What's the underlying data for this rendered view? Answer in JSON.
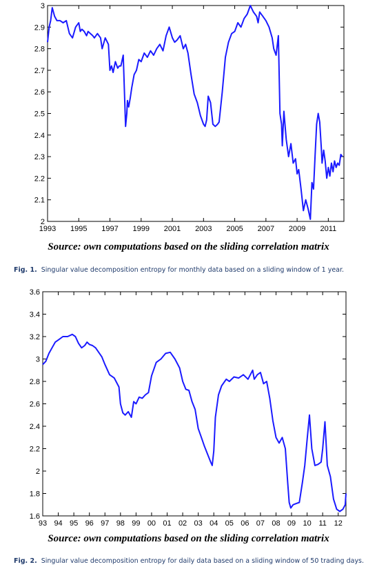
{
  "figures": [
    {
      "label": "Fig. 1.",
      "caption": "Singular value decomposition entropy for monthly data based on a sliding window of 1 year.",
      "source": "Source: own computations based on the sliding correlation matrix"
    },
    {
      "label": "Fig. 2.",
      "caption": "Singular value decomposition entropy for daily data based on a sliding window of 50 trading days.",
      "source": "Source: own computations based on the sliding correlation matrix"
    }
  ],
  "chart_data": [
    {
      "type": "line",
      "color": "#1a1aff",
      "xlim": [
        1993,
        2012
      ],
      "ylim": [
        2,
        3
      ],
      "x_ticks": [
        1993,
        1995,
        1997,
        1999,
        2001,
        2003,
        2005,
        2007,
        2009,
        2011
      ],
      "x_tick_labels": [
        "1993",
        "1995",
        "1997",
        "1999",
        "2001",
        "2003",
        "2005",
        "2007",
        "2009",
        "2011"
      ],
      "y_ticks": [
        2,
        2.1,
        2.2,
        2.3,
        2.4,
        2.5,
        2.6,
        2.7,
        2.8,
        2.9,
        3
      ],
      "y_tick_labels": [
        "2",
        "2.1",
        "2.2",
        "2.3",
        "2.4",
        "2.5",
        "2.6",
        "2.7",
        "2.8",
        "2.9",
        "3"
      ],
      "series": [
        {
          "x": [
            1993.0,
            1993.1,
            1993.2,
            1993.3,
            1993.45,
            1993.6,
            1993.8,
            1994.0,
            1994.2,
            1994.4,
            1994.6,
            1994.8,
            1995.0,
            1995.1,
            1995.2,
            1995.35,
            1995.5,
            1995.6,
            1995.75,
            1995.9,
            1996.0,
            1996.2,
            1996.4,
            1996.5,
            1996.7,
            1996.9,
            1997.0,
            1997.1,
            1997.2,
            1997.35,
            1997.5,
            1997.6,
            1997.7,
            1997.85,
            1998.0,
            1998.08,
            1998.12,
            1998.2,
            1998.3,
            1998.4,
            1998.55,
            1998.7,
            1998.85,
            1999.0,
            1999.2,
            1999.4,
            1999.6,
            1999.8,
            2000.0,
            2000.2,
            2000.4,
            2000.6,
            2000.8,
            2001.0,
            2001.15,
            2001.3,
            2001.5,
            2001.7,
            2001.85,
            2002.0,
            2002.2,
            2002.4,
            2002.6,
            2002.8,
            2003.0,
            2003.1,
            2003.2,
            2003.3,
            2003.45,
            2003.6,
            2003.75,
            2003.9,
            2004.0,
            2004.2,
            2004.4,
            2004.6,
            2004.8,
            2005.0,
            2005.2,
            2005.4,
            2005.6,
            2005.8,
            2006.0,
            2006.2,
            2006.4,
            2006.5,
            2006.6,
            2006.8,
            2007.0,
            2007.2,
            2007.4,
            2007.5,
            2007.65,
            2007.8,
            2007.9,
            2008.0,
            2008.05,
            2008.15,
            2008.3,
            2008.45,
            2008.6,
            2008.75,
            2008.9,
            2009.0,
            2009.1,
            2009.25,
            2009.4,
            2009.55,
            2009.7,
            2009.85,
            2009.95,
            2010.05,
            2010.15,
            2010.25,
            2010.35,
            2010.45,
            2010.55,
            2010.6,
            2010.7,
            2010.8,
            2010.9,
            2011.0,
            2011.1,
            2011.2,
            2011.3,
            2011.4,
            2011.5,
            2011.6,
            2011.7,
            2011.8,
            2011.9
          ],
          "y": [
            2.83,
            2.9,
            2.93,
            2.99,
            2.95,
            2.93,
            2.93,
            2.92,
            2.93,
            2.87,
            2.85,
            2.9,
            2.92,
            2.88,
            2.89,
            2.88,
            2.86,
            2.88,
            2.87,
            2.86,
            2.85,
            2.87,
            2.85,
            2.8,
            2.85,
            2.82,
            2.7,
            2.72,
            2.69,
            2.74,
            2.71,
            2.72,
            2.72,
            2.77,
            2.44,
            2.5,
            2.56,
            2.53,
            2.57,
            2.62,
            2.68,
            2.7,
            2.75,
            2.74,
            2.78,
            2.76,
            2.79,
            2.77,
            2.8,
            2.82,
            2.79,
            2.86,
            2.9,
            2.85,
            2.83,
            2.84,
            2.86,
            2.8,
            2.82,
            2.78,
            2.68,
            2.59,
            2.55,
            2.49,
            2.45,
            2.44,
            2.47,
            2.58,
            2.55,
            2.45,
            2.44,
            2.45,
            2.46,
            2.6,
            2.76,
            2.83,
            2.87,
            2.88,
            2.92,
            2.9,
            2.94,
            2.96,
            3.0,
            2.97,
            2.95,
            2.92,
            2.97,
            2.95,
            2.93,
            2.9,
            2.85,
            2.8,
            2.77,
            2.86,
            2.5,
            2.45,
            2.35,
            2.51,
            2.38,
            2.3,
            2.36,
            2.27,
            2.29,
            2.22,
            2.24,
            2.15,
            2.05,
            2.1,
            2.06,
            2.01,
            2.18,
            2.15,
            2.3,
            2.45,
            2.5,
            2.46,
            2.34,
            2.27,
            2.33,
            2.28,
            2.2,
            2.25,
            2.21,
            2.27,
            2.23,
            2.28,
            2.25,
            2.27,
            2.26,
            2.31,
            2.3
          ]
        }
      ]
    },
    {
      "type": "line",
      "color": "#1a1aff",
      "xlim": [
        1993,
        2012.5
      ],
      "ylim": [
        1.6,
        3.6
      ],
      "x_ticks": [
        1993,
        1994,
        1995,
        1996,
        1997,
        1998,
        1999,
        2000,
        2001,
        2002,
        2003,
        2004,
        2005,
        2006,
        2007,
        2008,
        2009,
        2010,
        2011,
        2012
      ],
      "x_tick_labels": [
        "93",
        "94",
        "95",
        "96",
        "97",
        "98",
        "99",
        "00",
        "01",
        "02",
        "03",
        "04",
        "05",
        "06",
        "07",
        "08",
        "09",
        "10",
        "11",
        "12"
      ],
      "y_ticks": [
        1.6,
        1.8,
        2,
        2.2,
        2.4,
        2.6,
        2.8,
        3,
        3.2,
        3.4,
        3.6
      ],
      "y_tick_labels": [
        "1.6",
        "1.8",
        "2",
        "2.2",
        "2.4",
        "2.6",
        "2.8",
        "3",
        "3.2",
        "3.4",
        "3.6"
      ],
      "series": [
        {
          "x": [
            1993.0,
            1993.2,
            1993.4,
            1993.6,
            1993.8,
            1994.0,
            1994.3,
            1994.6,
            1994.9,
            1995.1,
            1995.3,
            1995.5,
            1995.7,
            1995.85,
            1996.0,
            1996.2,
            1996.4,
            1996.6,
            1996.8,
            1997.0,
            1997.3,
            1997.6,
            1997.9,
            1998.0,
            1998.15,
            1998.3,
            1998.5,
            1998.7,
            1998.85,
            1999.0,
            1999.2,
            1999.4,
            1999.6,
            1999.8,
            2000.0,
            2000.3,
            2000.6,
            2000.9,
            2001.2,
            2001.5,
            2001.8,
            2002.0,
            2002.2,
            2002.4,
            2002.6,
            2002.8,
            2003.0,
            2003.2,
            2003.4,
            2003.6,
            2003.8,
            2003.9,
            2004.0,
            2004.1,
            2004.3,
            2004.5,
            2004.8,
            2005.0,
            2005.3,
            2005.6,
            2005.9,
            2006.2,
            2006.5,
            2006.6,
            2006.8,
            2007.0,
            2007.2,
            2007.4,
            2007.6,
            2007.8,
            2008.0,
            2008.2,
            2008.4,
            2008.6,
            2008.75,
            2008.85,
            2008.95,
            2009.1,
            2009.3,
            2009.5,
            2009.7,
            2009.85,
            2010.0,
            2010.15,
            2010.3,
            2010.5,
            2010.7,
            2010.9,
            2011.0,
            2011.15,
            2011.3,
            2011.5,
            2011.7,
            2011.9,
            2012.1,
            2012.3,
            2012.45,
            2012.5
          ],
          "y": [
            2.95,
            2.98,
            3.05,
            3.1,
            3.15,
            3.17,
            3.2,
            3.2,
            3.22,
            3.2,
            3.14,
            3.1,
            3.12,
            3.15,
            3.13,
            3.12,
            3.1,
            3.06,
            3.02,
            2.95,
            2.86,
            2.83,
            2.75,
            2.6,
            2.52,
            2.5,
            2.53,
            2.48,
            2.62,
            2.6,
            2.66,
            2.65,
            2.68,
            2.7,
            2.85,
            2.97,
            3.0,
            3.05,
            3.06,
            3.0,
            2.92,
            2.8,
            2.73,
            2.72,
            2.62,
            2.55,
            2.38,
            2.3,
            2.22,
            2.15,
            2.08,
            2.05,
            2.18,
            2.48,
            2.68,
            2.76,
            2.82,
            2.8,
            2.84,
            2.83,
            2.86,
            2.82,
            2.9,
            2.82,
            2.86,
            2.88,
            2.78,
            2.8,
            2.65,
            2.45,
            2.3,
            2.25,
            2.3,
            2.2,
            1.9,
            1.72,
            1.67,
            1.7,
            1.71,
            1.72,
            1.9,
            2.05,
            2.28,
            2.5,
            2.2,
            2.05,
            2.06,
            2.08,
            2.2,
            2.44,
            2.05,
            1.95,
            1.75,
            1.66,
            1.64,
            1.66,
            1.7,
            1.8
          ]
        }
      ]
    }
  ]
}
